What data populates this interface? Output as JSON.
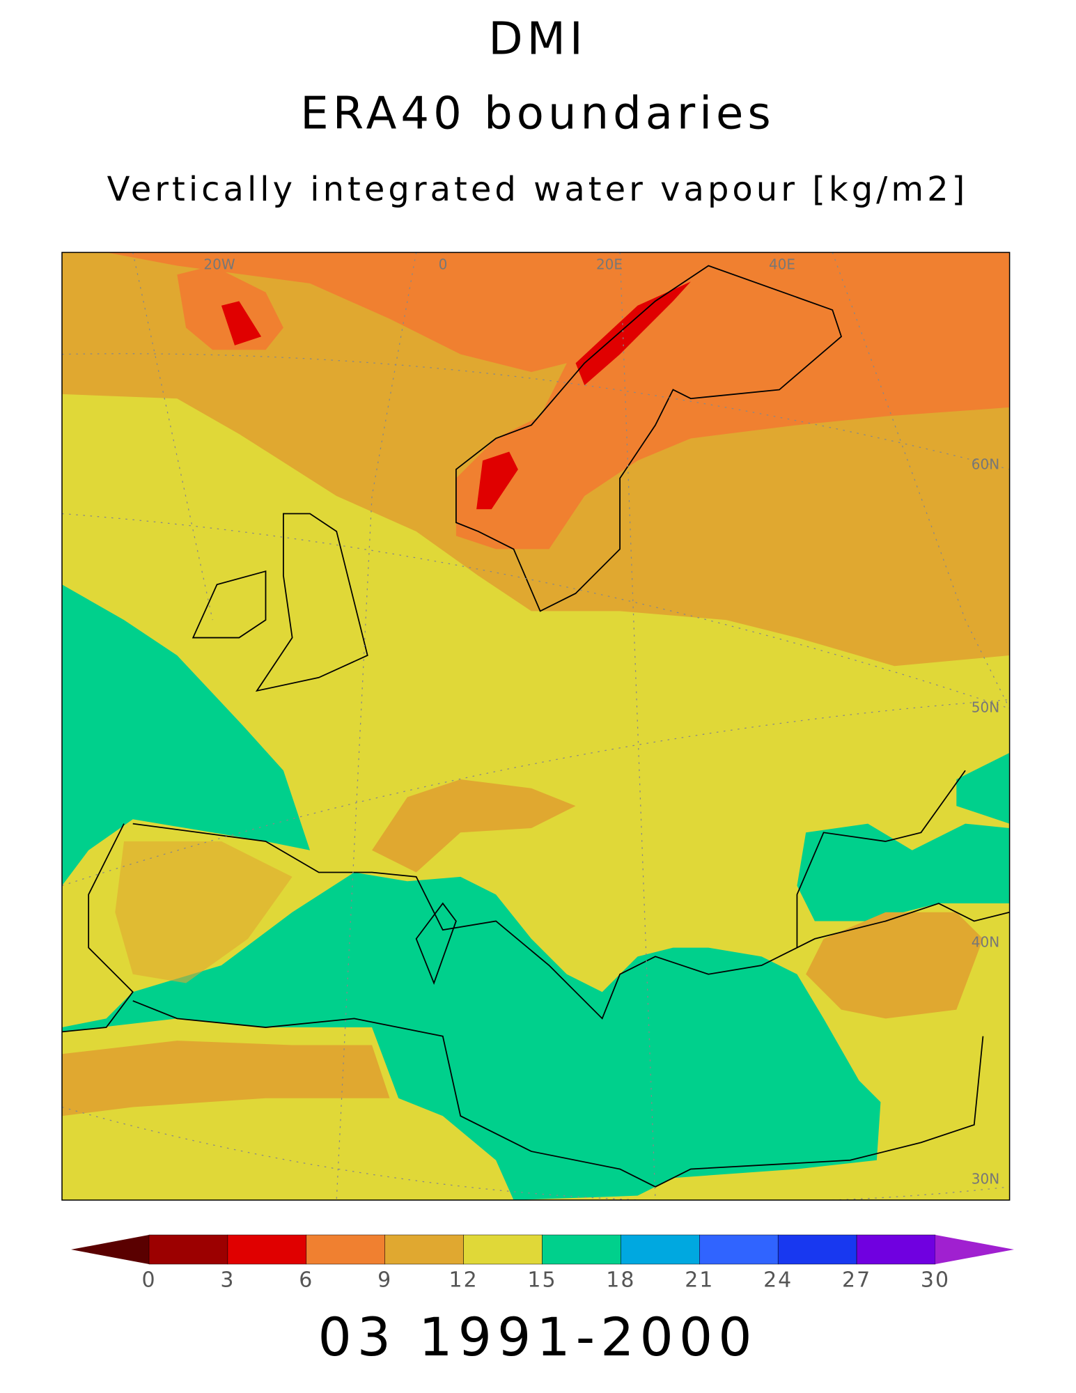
{
  "title": "DMI",
  "subtitle": "ERA40 boundaries",
  "variable": "Vertically integrated water vapour [kg/m2]",
  "period": "03 1991-2000",
  "map_labels": [
    "20W",
    "0",
    "20E",
    "40E",
    "60N",
    "50N",
    "40N",
    "30N"
  ],
  "colorbar": {
    "ticks": [
      0,
      3,
      6,
      9,
      12,
      15,
      18,
      21,
      24,
      27,
      30
    ],
    "colors": [
      "#5a0000",
      "#9c0000",
      "#e00000",
      "#f08030",
      "#e0a830",
      "#e0d838",
      "#00d08c",
      "#00a8e0",
      "#3064ff",
      "#1838f0",
      "#7000e0",
      "#a020d0"
    ]
  }
}
